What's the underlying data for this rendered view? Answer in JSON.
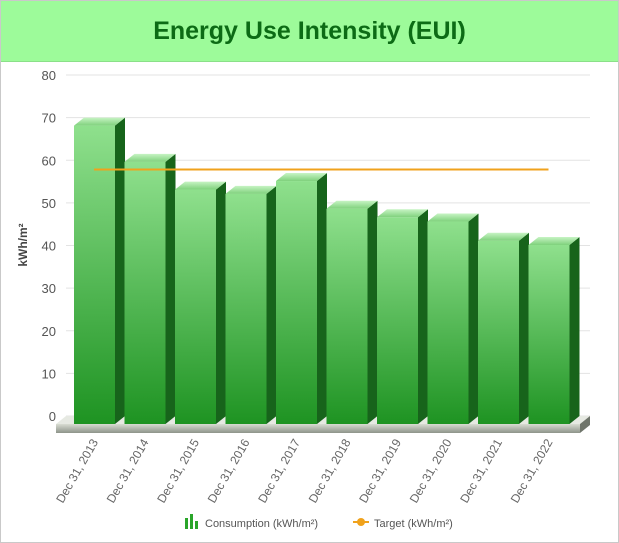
{
  "header": {
    "title": "Energy Use Intensity (EUI)"
  },
  "chart_data": {
    "type": "bar",
    "title": "Energy Use Intensity (EUI)",
    "ylabel": "kWh/m²",
    "xlabel": "",
    "ylim": [
      0,
      80
    ],
    "yticks": [
      0,
      10,
      20,
      30,
      40,
      50,
      60,
      70,
      80
    ],
    "grid": true,
    "legend_position": "bottom",
    "categories": [
      "Dec 31, 2013",
      "Dec 31, 2014",
      "Dec 31, 2015",
      "Dec 31, 2016",
      "Dec 31, 2017",
      "Dec 31, 2018",
      "Dec 31, 2019",
      "Dec 31, 2020",
      "Dec 31, 2021",
      "Dec 31, 2022"
    ],
    "series": [
      {
        "name": "Consumption (kWh/m²)",
        "type": "bar",
        "color": "#2aa52a",
        "values": [
          70,
          61.5,
          55,
          54,
          57,
          50.5,
          48.5,
          47.5,
          43,
          42
        ]
      },
      {
        "name": "Target (kWh/m²)",
        "type": "line",
        "color": "#f0a21c",
        "values": [
          59,
          59,
          59,
          59,
          59,
          59,
          59,
          59,
          59,
          59
        ]
      }
    ]
  }
}
